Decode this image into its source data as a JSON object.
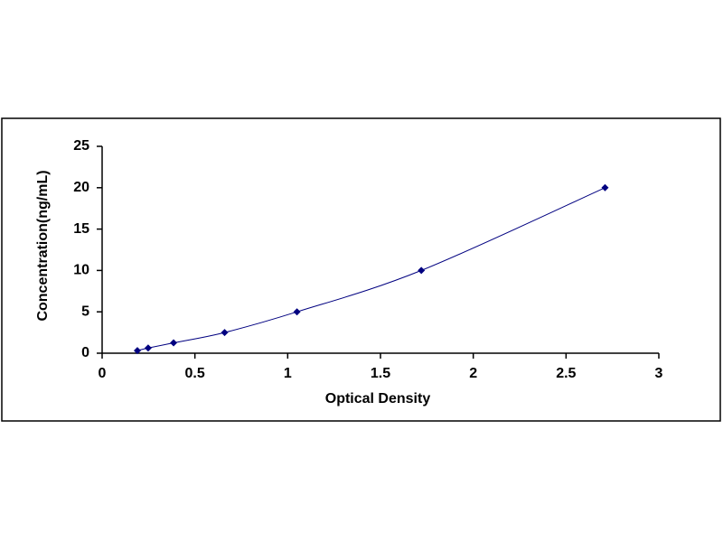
{
  "chart_data": {
    "type": "scatter",
    "x_label": "Optical Density",
    "y_label": "Concentration(ng/mL)",
    "series": [
      {
        "color": "#000080",
        "x": [
          0.19,
          0.248,
          0.385,
          0.66,
          1.05,
          1.72,
          2.71
        ],
        "values": [
          0.312,
          0.625,
          1.25,
          2.5,
          5,
          10,
          20
        ]
      }
    ],
    "xlim": [
      0,
      3
    ],
    "xticks": [
      0,
      0.5,
      1,
      1.5,
      2,
      2.5,
      3
    ],
    "ylim": [
      0,
      25
    ],
    "yticks": [
      0,
      5,
      10,
      15,
      20,
      25
    ],
    "grid": false,
    "trendline": true
  }
}
